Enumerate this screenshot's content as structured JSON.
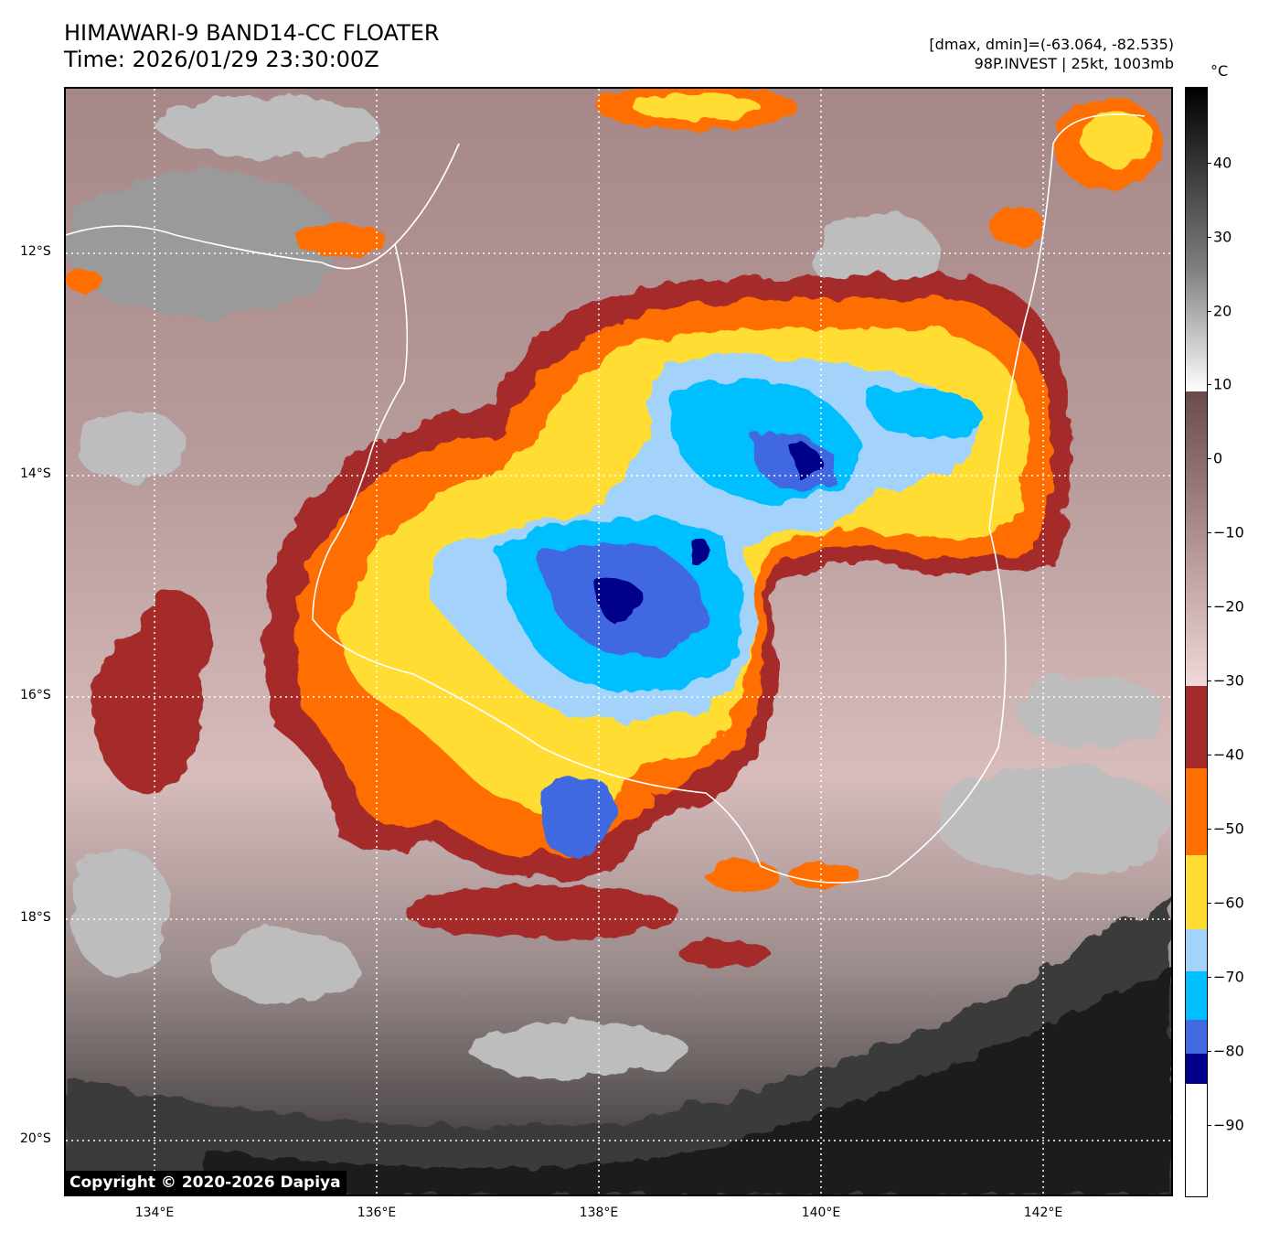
{
  "header": {
    "title_line1": "HIMAWARI-9 BAND14-CC FLOATER",
    "title_line2": "Time: 2026/01/29 23:30:00Z",
    "dminmax": "[dmax, dmin]=(-63.064, -82.535)",
    "storm_info": "98P.INVEST | 25kt, 1003mb"
  },
  "colorbar": {
    "unit": "°C",
    "ticks": [
      "40",
      "30",
      "20",
      "10",
      "0",
      "−10",
      "−20",
      "−30",
      "−40",
      "−50",
      "−60",
      "−70",
      "−80",
      "−90"
    ],
    "colors": {
      "black": "#000000",
      "gray": "#808080",
      "white": "#ffffff",
      "brown": "#6b4a4a",
      "pink": "#f2d8d8",
      "dark_red": "#a52a2a",
      "orange": "#ff6e00",
      "yellow": "#ffdd33",
      "light_blue": "#a3d3fb",
      "cyan": "#00bfff",
      "royal_blue": "#4169e1",
      "navy": "#00008b"
    }
  },
  "map": {
    "lat_labels": [
      "12°S",
      "14°S",
      "16°S",
      "18°S",
      "20°S"
    ],
    "lon_labels": [
      "134°E",
      "136°E",
      "138°E",
      "140°E",
      "142°E"
    ],
    "copyright": "Copyright © 2020-2026 Dapiya"
  }
}
